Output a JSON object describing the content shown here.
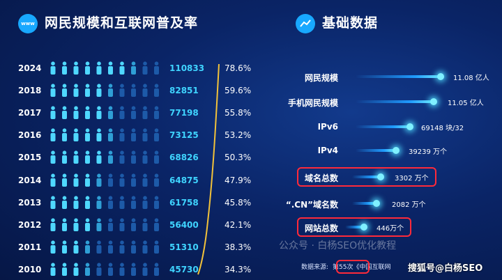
{
  "left_title": "网民规模和互联网普及率",
  "right_title": "基础数据",
  "chart_data": [
    {
      "type": "table",
      "title": "网民规模和互联网普及率",
      "categories": [
        "2024",
        "2018",
        "2017",
        "2016",
        "2015",
        "2014",
        "2013",
        "2012",
        "2011",
        "2010"
      ],
      "series": [
        {
          "values": [
            110833,
            82851,
            77198,
            73125,
            68826,
            64875,
            61758,
            56400,
            51310,
            45730
          ]
        },
        {
          "values": [
            "78.6%",
            "59.6%",
            "55.8%",
            "53.2%",
            "50.3%",
            "47.9%",
            "45.8%",
            "42.1%",
            "38.3%",
            "34.3%"
          ]
        }
      ],
      "rates_numeric": [
        78.6,
        59.6,
        55.8,
        53.2,
        50.3,
        47.9,
        45.8,
        42.1,
        38.3,
        34.3
      ],
      "highlight_color": "#3fd4ff"
    },
    {
      "type": "bar",
      "title": "基础数据",
      "categories": [
        "网民规模",
        "手机网民规模",
        "IPv6",
        "IPv4",
        "域名总数",
        "“.CN”域名数",
        "网站总数"
      ],
      "values": [
        11.08,
        11.05,
        69148,
        39239,
        3302,
        2082,
        446
      ],
      "value_labels": [
        "11.08 亿人",
        "11.05 亿人",
        "69148 块/32",
        "39239 万个",
        "3302 万个",
        "2082 万个",
        "446万个"
      ],
      "highlighted": [
        "域名总数",
        "网站总数"
      ],
      "highlight_color": "#ff2a3a"
    }
  ],
  "watermark_text": "公众号 · 白杨SEO优化教程",
  "source_parts": {
    "prefix": "数据来源:",
    "issue": "第55次",
    "suffix": "《中国互联网"
  },
  "sohu_text": "搜狐号@白杨SEO",
  "www_icon_text": "www"
}
